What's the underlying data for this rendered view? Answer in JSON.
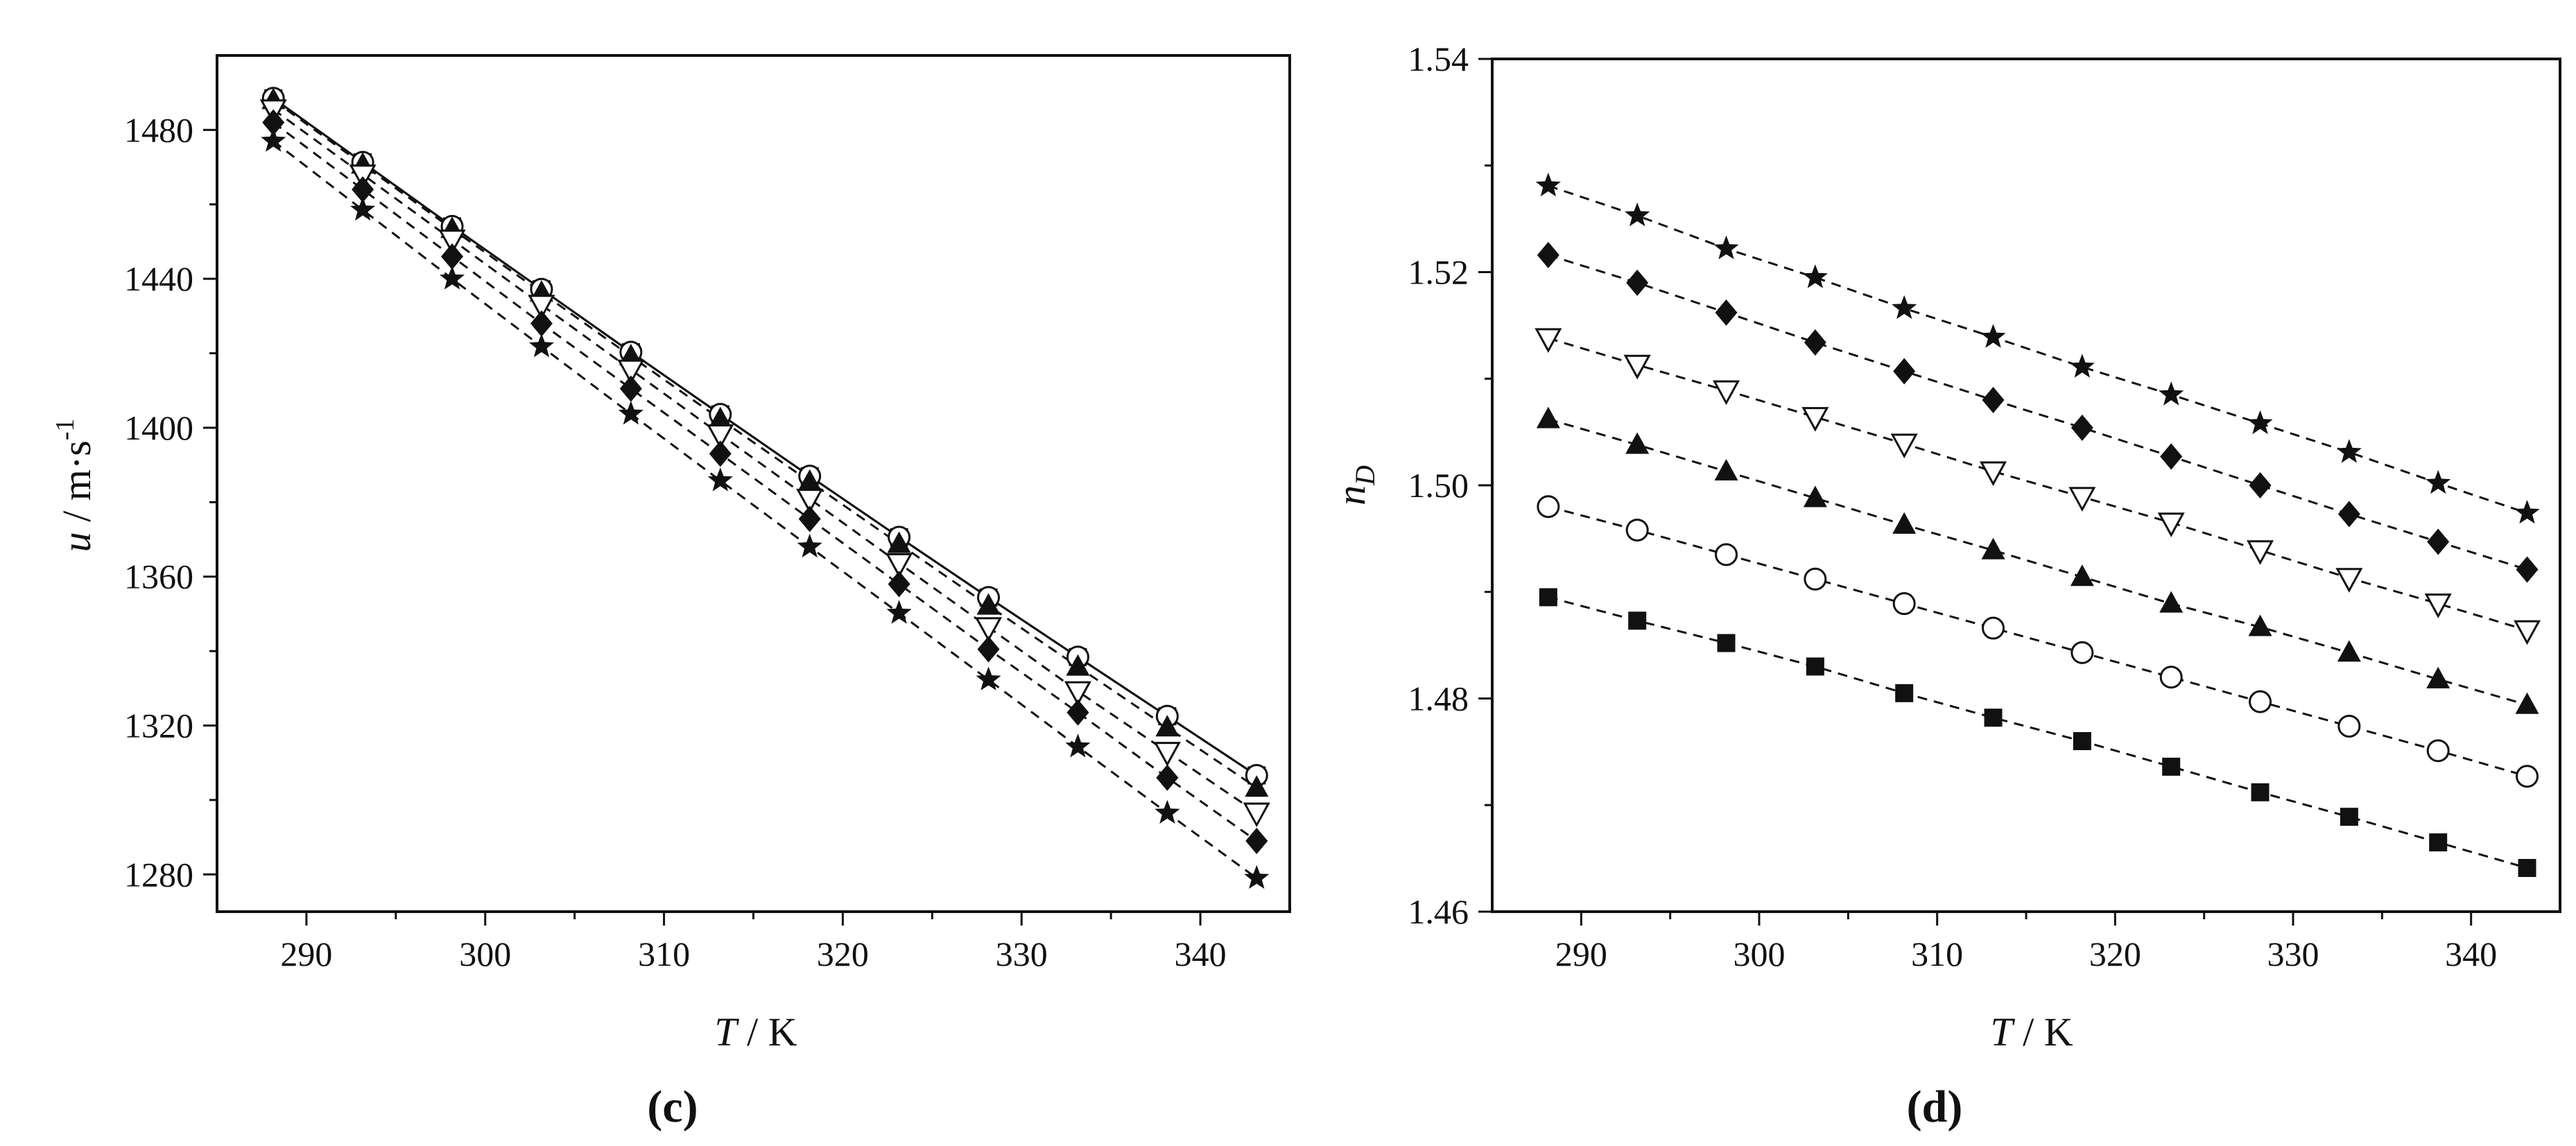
{
  "chart_data": [
    {
      "type": "line",
      "panel_label": "(c)",
      "title": "",
      "xlabel_var": "T",
      "xlabel_unit": " / K",
      "ylabel_var": "u",
      "ylabel_unit": " / m·s",
      "ylabel_exp": "-1",
      "xlim": [
        285,
        345
      ],
      "ylim": [
        1270,
        1500
      ],
      "xticks": [
        290,
        300,
        310,
        320,
        330,
        340
      ],
      "yticks": [
        1280,
        1320,
        1360,
        1400,
        1440,
        1480
      ],
      "grid": false,
      "legend": "none",
      "x": [
        288.15,
        293.15,
        298.15,
        303.15,
        308.15,
        313.15,
        318.15,
        323.15,
        328.15,
        333.15,
        338.15,
        343.15
      ],
      "series": [
        {
          "marker": "square",
          "line": "solid",
          "values": [
            1488.5,
            1471.3,
            1454.1,
            1437.2,
            1420.3,
            1403.6,
            1387.0,
            1370.6,
            1354.4,
            1338.4,
            1322.5,
            1306.6
          ]
        },
        {
          "marker": "circle",
          "line": "solid",
          "values": [
            1488.5,
            1471.3,
            1454.1,
            1437.2,
            1420.3,
            1403.6,
            1387.0,
            1370.6,
            1354.4,
            1338.4,
            1322.5,
            1306.6
          ]
        },
        {
          "marker": "triangle-up",
          "line": "dashed",
          "values": [
            1488.0,
            1470.7,
            1453.4,
            1436.3,
            1419.2,
            1402.3,
            1385.5,
            1368.8,
            1352.2,
            1335.8,
            1319.5,
            1303.3
          ]
        },
        {
          "marker": "triangle-down",
          "line": "dashed",
          "values": [
            1485.5,
            1468.0,
            1450.5,
            1433.0,
            1415.6,
            1398.2,
            1380.9,
            1363.6,
            1346.4,
            1329.2,
            1312.9,
            1296.6
          ]
        },
        {
          "marker": "diamond",
          "line": "dashed",
          "values": [
            1482.0,
            1464.0,
            1446.0,
            1428.0,
            1410.5,
            1393.0,
            1375.5,
            1358.0,
            1340.5,
            1323.5,
            1306.0,
            1289.0
          ]
        },
        {
          "marker": "star",
          "line": "dashed",
          "values": [
            1477.0,
            1458.5,
            1440.0,
            1421.8,
            1403.7,
            1385.8,
            1368.0,
            1350.2,
            1332.3,
            1314.3,
            1296.5,
            1279.0
          ]
        }
      ]
    },
    {
      "type": "line",
      "panel_label": "(d)",
      "title": "",
      "xlabel_var": "T",
      "xlabel_unit": " / K",
      "ylabel_var": "n",
      "ylabel_sub": "D",
      "xlim": [
        285,
        345
      ],
      "ylim": [
        1.46,
        1.54
      ],
      "xticks": [
        290,
        300,
        310,
        320,
        330,
        340
      ],
      "yticks": [
        1.46,
        1.48,
        1.5,
        1.52,
        1.54
      ],
      "ytick_labels": [
        "1.46",
        "1.48",
        "1.50",
        "1.52",
        "1.54"
      ],
      "grid": false,
      "legend": "none",
      "x": [
        288.15,
        293.15,
        298.15,
        303.15,
        308.15,
        313.15,
        318.15,
        323.15,
        328.15,
        333.15,
        338.15,
        343.15
      ],
      "series": [
        {
          "marker": "square",
          "line": "dashed",
          "values": [
            1.4895,
            1.4873,
            1.4852,
            1.483,
            1.4805,
            1.4782,
            1.476,
            1.4736,
            1.4712,
            1.4689,
            1.4665,
            1.4641
          ]
        },
        {
          "marker": "circle",
          "line": "dashed",
          "values": [
            1.498,
            1.4958,
            1.4935,
            1.4912,
            1.4889,
            1.4866,
            1.4843,
            1.482,
            1.4797,
            1.4774,
            1.4751,
            1.4727
          ]
        },
        {
          "marker": "triangle-up",
          "line": "dashed",
          "values": [
            1.5062,
            1.5038,
            1.5013,
            1.4988,
            1.4963,
            1.4939,
            1.4914,
            1.4889,
            1.4867,
            1.4843,
            1.4818,
            1.4794
          ]
        },
        {
          "marker": "triangle-down",
          "line": "dashed",
          "values": [
            1.5138,
            1.5113,
            1.5089,
            1.5064,
            1.5039,
            1.5013,
            1.4989,
            1.4965,
            1.4939,
            1.4913,
            1.4889,
            1.4864
          ]
        },
        {
          "marker": "diamond",
          "line": "dashed",
          "values": [
            1.5216,
            1.519,
            1.5162,
            1.5134,
            1.5107,
            1.508,
            1.5054,
            1.5027,
            1.5,
            1.4973,
            1.4947,
            1.4921
          ]
        },
        {
          "marker": "star",
          "line": "dashed",
          "values": [
            1.5281,
            1.5253,
            1.5222,
            1.5195,
            1.5166,
            1.5139,
            1.5111,
            1.5085,
            1.5058,
            1.5031,
            1.5002,
            1.4974
          ]
        }
      ]
    }
  ]
}
